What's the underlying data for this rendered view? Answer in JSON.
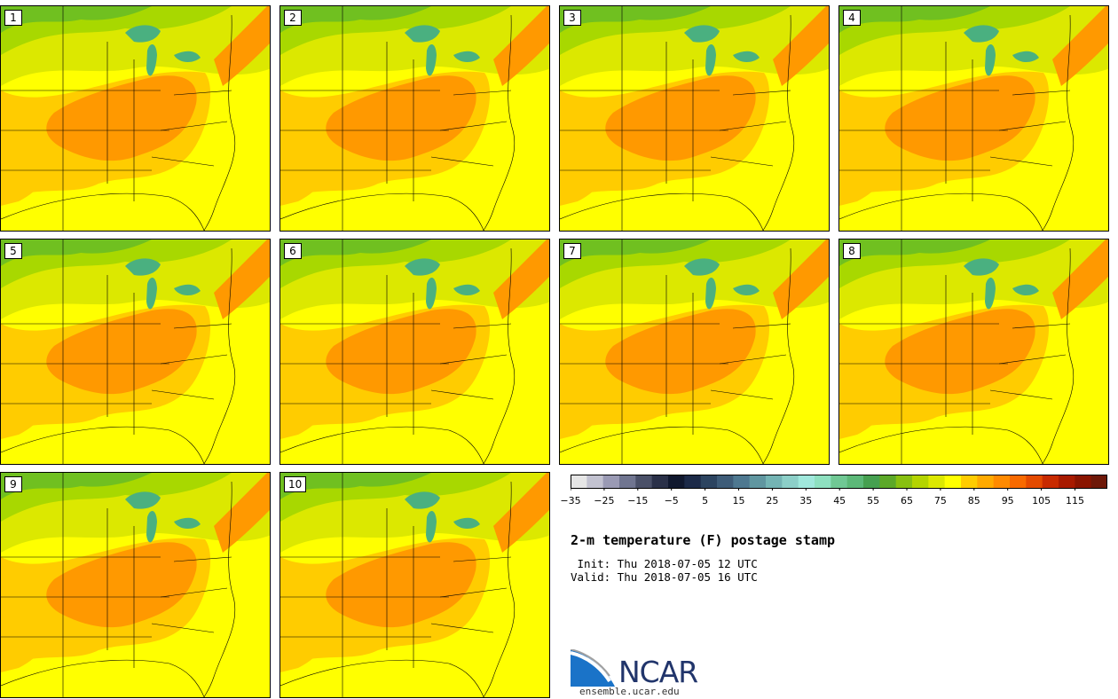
{
  "panels": [
    {
      "label": "1"
    },
    {
      "label": "2"
    },
    {
      "label": "3"
    },
    {
      "label": "4"
    },
    {
      "label": "5"
    },
    {
      "label": "6"
    },
    {
      "label": "7"
    },
    {
      "label": "8"
    },
    {
      "label": "9"
    },
    {
      "label": "10"
    }
  ],
  "colorbar": {
    "tick_labels": [
      "−35",
      "−25",
      "−15",
      "−5",
      "5",
      "15",
      "25",
      "35",
      "45",
      "55",
      "65",
      "75",
      "85",
      "95",
      "105",
      "115"
    ],
    "colors": [
      "#e6e6e6",
      "#c2c2d0",
      "#9a9ab4",
      "#707590",
      "#4a5068",
      "#2a3048",
      "#10182e",
      "#1c2a48",
      "#2c4460",
      "#3e5c78",
      "#4e7890",
      "#6096a0",
      "#74b4b4",
      "#8ccfc8",
      "#a0e8dc",
      "#8ee0c0",
      "#70c894",
      "#5cb878",
      "#46a050",
      "#5ca828",
      "#88c010",
      "#b4d400",
      "#dce800",
      "#ffff00",
      "#ffcc00",
      "#ffaa00",
      "#ff8a00",
      "#f86a00",
      "#e44a00",
      "#c82a00",
      "#a81a00",
      "#8a1400",
      "#6e1808"
    ]
  },
  "title": "2-m temperature (F) postage stamp",
  "init_line": " Init: Thu 2018-07-05 12 UTC",
  "valid_line": "Valid: Thu 2018-07-05 16 UTC",
  "logo": {
    "name": "NCAR",
    "url": "ensemble.ucar.edu"
  },
  "map_colors": {
    "hot": "#ff9900",
    "warm": "#ffcc00",
    "yellow": "#ffff00",
    "lime": "#dce800",
    "green": "#a8d800",
    "dgreen": "#70c020",
    "lake": "#4ab080"
  }
}
